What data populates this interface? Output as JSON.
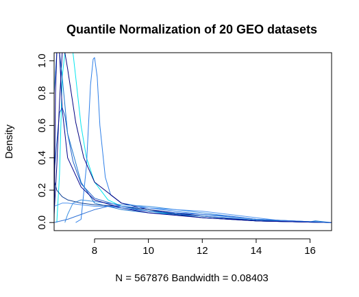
{
  "chart_data": {
    "type": "line",
    "title": "Quantile Normalization of 20 GEO datasets",
    "xlabel": "N = 567876   Bandwidth = 0.08403",
    "ylabel": "Density",
    "xlim": [
      6.5,
      16.8
    ],
    "ylim": [
      -0.05,
      1.05
    ],
    "x_ticks": [
      8,
      10,
      12,
      14,
      16
    ],
    "x_tick_labels": [
      "8",
      "10",
      "12",
      "14",
      "16"
    ],
    "y_ticks": [
      0.0,
      0.2,
      0.4,
      0.6,
      0.8,
      1.0
    ],
    "y_tick_labels": [
      "0.0",
      "0.2",
      "0.4",
      "0.6",
      "0.8",
      "1.0"
    ],
    "grid": false,
    "series": [
      {
        "color": "#00E5EE",
        "x": [
          6.6,
          6.7,
          6.8,
          6.9,
          7.0,
          7.1,
          7.2,
          7.3,
          7.5,
          7.7,
          8.0,
          8.5,
          9.0,
          10.0,
          11.0,
          12.0,
          14.0,
          16.8
        ],
        "y": [
          0.0,
          0.3,
          0.9,
          1.05,
          1.05,
          1.05,
          1.05,
          0.9,
          0.6,
          0.4,
          0.25,
          0.14,
          0.1,
          0.07,
          0.05,
          0.03,
          0.01,
          0.0
        ]
      },
      {
        "color": "#2C7EE8",
        "x": [
          7.3,
          7.5,
          7.7,
          7.85,
          7.95,
          8.0,
          8.1,
          8.2,
          8.4,
          8.6,
          9.0,
          10.0,
          11.0,
          12.0,
          14.0,
          16.8
        ],
        "y": [
          0.0,
          0.02,
          0.35,
          0.85,
          1.01,
          1.02,
          0.9,
          0.6,
          0.28,
          0.17,
          0.12,
          0.09,
          0.07,
          0.05,
          0.02,
          0.0
        ]
      },
      {
        "color": "#1E5EC8",
        "x": [
          6.5,
          6.6,
          6.7,
          6.8,
          6.9,
          7.0,
          7.2,
          7.5,
          8.0,
          9.0,
          10.0,
          12.0,
          14.0,
          16.8
        ],
        "y": [
          0.3,
          0.5,
          0.68,
          0.71,
          0.66,
          0.55,
          0.38,
          0.24,
          0.15,
          0.1,
          0.07,
          0.04,
          0.01,
          0.0
        ]
      },
      {
        "color": "#000080",
        "x": [
          6.5,
          6.6,
          6.7,
          6.8,
          6.9,
          7.0,
          7.3,
          7.6,
          8.0,
          9.0,
          10.0,
          12.0,
          14.0,
          16.8
        ],
        "y": [
          0.05,
          0.35,
          0.75,
          1.05,
          1.05,
          0.95,
          0.62,
          0.4,
          0.25,
          0.12,
          0.08,
          0.04,
          0.01,
          0.0
        ]
      },
      {
        "color": "#1874CD",
        "x": [
          6.5,
          6.6,
          6.7,
          6.8,
          7.0,
          7.5,
          8.0,
          9.0,
          10.0,
          12.0,
          14.0,
          16.0,
          16.2,
          16.8
        ],
        "y": [
          0.8,
          1.05,
          1.05,
          0.9,
          0.55,
          0.25,
          0.12,
          0.08,
          0.06,
          0.04,
          0.015,
          0.005,
          0.01,
          0.0
        ]
      },
      {
        "color": "#3A8FE0",
        "x": [
          6.9,
          7.0,
          7.2,
          7.5,
          8.0,
          9.0,
          10.0,
          11.0,
          12.0,
          13.0,
          14.0,
          16.8
        ],
        "y": [
          0.0,
          0.05,
          0.12,
          0.14,
          0.13,
          0.11,
          0.1,
          0.08,
          0.06,
          0.04,
          0.02,
          0.0
        ]
      },
      {
        "color": "#0A3D91",
        "x": [
          6.5,
          6.6,
          6.8,
          7.0,
          7.5,
          8.0,
          9.0,
          10.0,
          11.0,
          12.0,
          14.0,
          16.8
        ],
        "y": [
          0.26,
          0.2,
          0.16,
          0.14,
          0.12,
          0.11,
          0.1,
          0.08,
          0.05,
          0.03,
          0.01,
          0.0
        ]
      },
      {
        "color": "#4F94F0",
        "x": [
          6.5,
          6.8,
          7.0,
          7.5,
          8.0,
          9.0,
          10.0,
          11.0,
          12.0,
          13.0,
          14.0,
          15.0,
          16.8
        ],
        "y": [
          0.1,
          0.12,
          0.12,
          0.11,
          0.1,
          0.1,
          0.09,
          0.08,
          0.07,
          0.05,
          0.03,
          0.01,
          0.0
        ]
      },
      {
        "color": "#00008B",
        "x": [
          6.5,
          6.55,
          6.6,
          6.7,
          6.8,
          7.0,
          7.5,
          8.0,
          9.0,
          10.0,
          12.0,
          14.0,
          16.8
        ],
        "y": [
          0.0,
          0.8,
          1.05,
          1.05,
          0.7,
          0.4,
          0.22,
          0.14,
          0.09,
          0.06,
          0.03,
          0.01,
          0.0
        ]
      },
      {
        "color": "#2B6FD6",
        "x": [
          6.5,
          7.0,
          7.5,
          8.0,
          8.5,
          9.0,
          10.0,
          11.0,
          12.0,
          13.0,
          14.0,
          16.8
        ],
        "y": [
          0.0,
          0.02,
          0.05,
          0.08,
          0.1,
          0.09,
          0.07,
          0.06,
          0.05,
          0.04,
          0.02,
          0.0
        ]
      }
    ]
  }
}
